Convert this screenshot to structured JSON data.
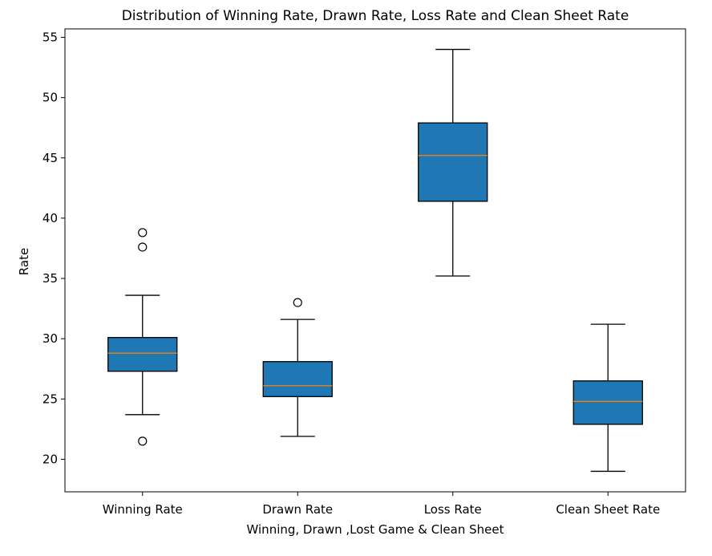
{
  "chart_data": {
    "type": "boxplot",
    "title": "Distribution of Winning Rate, Drawn Rate, Loss Rate and Clean Sheet Rate",
    "xlabel": "Winning, Drawn ,Lost Game & Clean Sheet",
    "ylabel": "Rate",
    "ylim": [
      17.3,
      55.7
    ],
    "yticks": [
      20,
      25,
      30,
      35,
      40,
      45,
      50,
      55
    ],
    "grid": false,
    "box_color": "#1f77b4",
    "median_color": "#ff7f0e",
    "boxes": [
      {
        "category": "Winning Rate",
        "whisker_low": 23.7,
        "q1": 27.3,
        "median": 28.8,
        "q3": 30.1,
        "whisker_high": 33.6,
        "outliers": [
          38.8,
          37.6,
          21.5
        ]
      },
      {
        "category": "Drawn Rate",
        "whisker_low": 21.9,
        "q1": 25.2,
        "median": 26.1,
        "q3": 28.1,
        "whisker_high": 31.6,
        "outliers": [
          33.0
        ]
      },
      {
        "category": "Loss Rate",
        "whisker_low": 35.2,
        "q1": 41.4,
        "median": 45.2,
        "q3": 47.9,
        "whisker_high": 54.0,
        "outliers": []
      },
      {
        "category": "Clean Sheet Rate",
        "whisker_low": 19.0,
        "q1": 22.9,
        "median": 24.8,
        "q3": 26.5,
        "whisker_high": 31.2,
        "outliers": []
      }
    ]
  }
}
